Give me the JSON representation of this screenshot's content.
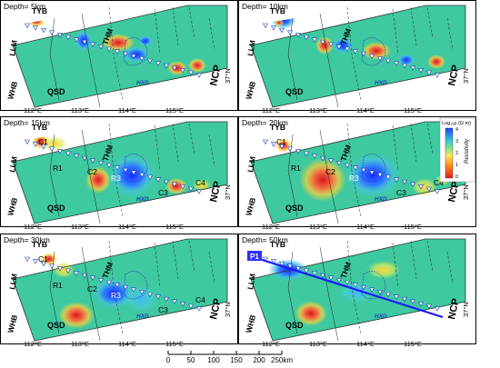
{
  "panels": [
    {
      "label": "Depth= 5km",
      "p1": "",
      "regions": [],
      "has_legend": false,
      "has_profile": false
    },
    {
      "label": "Depth= 10km",
      "p1": "",
      "regions": [],
      "has_legend": false,
      "has_profile": false
    },
    {
      "label": "Depth= 15km",
      "p1": "",
      "regions": [
        "C1",
        "R1",
        "C2",
        "R3",
        "C3",
        "C4"
      ],
      "has_legend": false,
      "has_profile": false
    },
    {
      "label": "Depth= 20km",
      "p1": "",
      "regions": [
        "C1",
        "R1",
        "C2",
        "R3",
        "C3",
        "C4"
      ],
      "has_legend": true,
      "has_profile": false
    },
    {
      "label": "Depth= 30km",
      "p1": "",
      "regions": [
        "C1",
        "R1",
        "C2",
        "R3",
        "C3",
        "C4"
      ],
      "has_legend": false,
      "has_profile": false
    },
    {
      "label": "Depth= 50km",
      "p1": "P1",
      "regions": [],
      "has_legend": false,
      "has_profile": true
    }
  ],
  "map_labels": {
    "tyb": "TYB",
    "llm": "LLM",
    "thm": "THM",
    "whb": "WHB",
    "qsd": "QSD",
    "ncp": "NCP",
    "hxd": "HXD"
  },
  "lon_ticks": [
    "112°E",
    "113°E",
    "114°E",
    "115°E"
  ],
  "lat_tick": "37°N",
  "legend": {
    "title": "Log₁₀ρ (Ω m)",
    "name": "Resistivity",
    "ticks": [
      "4",
      "3",
      "2",
      "1",
      "0"
    ]
  },
  "scale_bar": {
    "ticks": [
      "0",
      "50",
      "100",
      "150",
      "200"
    ],
    "end_label": "250km"
  },
  "colors": {
    "conductor": "#e41a1c",
    "resistor": "#1f3fff",
    "background": "#3ec9a0",
    "profile_line": "#1a1aff"
  }
}
